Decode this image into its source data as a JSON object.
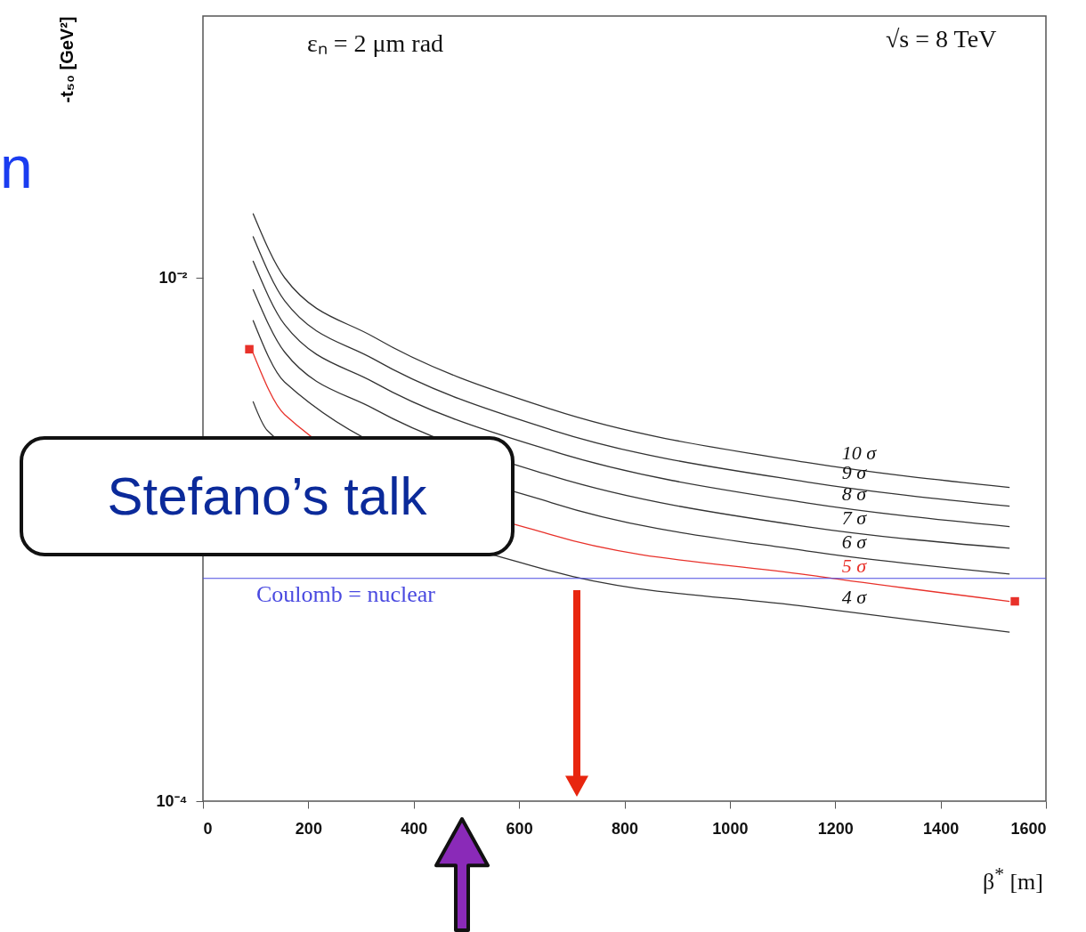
{
  "chart_data": {
    "type": "line",
    "xlabel": "β$^{*}$ [m]",
    "ylabel": "-t₅₀ [GeV²]",
    "log": "y",
    "grid": false,
    "xlim": [
      0,
      1600
    ],
    "xticks": [
      0,
      200,
      400,
      600,
      800,
      1000,
      1200,
      1400,
      1600
    ],
    "ylim": [
      0.0001,
      0.1
    ],
    "yticks": [
      {
        "value": 0.0001,
        "label": "10⁻⁴"
      },
      {
        "value": 0.001,
        "label": null
      },
      {
        "value": 0.01,
        "label": "10⁻²"
      }
    ],
    "x": [
      95,
      155,
      324,
      662,
      1145,
      1531
    ],
    "series": [
      {
        "name": "10 σ",
        "color": "#333333",
        "values": [
          0.0176,
          0.01,
          0.00594,
          0.00314,
          0.00197,
          0.00158
        ]
      },
      {
        "name": "9 σ",
        "color": "#333333",
        "values": [
          0.0144,
          0.00817,
          0.00489,
          0.00262,
          0.00166,
          0.00134
        ]
      },
      {
        "name": "8 σ",
        "color": "#333333",
        "values": [
          0.0116,
          0.00662,
          0.00399,
          0.00218,
          0.00138,
          0.00112
        ]
      },
      {
        "name": "7 σ",
        "color": "#333333",
        "values": [
          0.00904,
          0.0052,
          0.00316,
          0.00175,
          0.00112,
          0.000925
        ]
      },
      {
        "name": "6 σ",
        "color": "#333333",
        "values": [
          0.00688,
          0.00399,
          null,
          0.00138,
          0.000904,
          0.000738
        ]
      },
      {
        "name": "5 σ",
        "color": "#e8312a",
        "x": [
          95,
          155,
          662,
          1145,
          1531
        ],
        "values": [
          0.00516,
          0.003,
          0.00104,
          0.000733,
          0.00058
        ]
      },
      {
        "name": "4 σ",
        "color": "#333333",
        "x": [
          95,
          122,
          662,
          1145,
          1531
        ],
        "values": [
          0.00337,
          0.00261,
          0.000756,
          0.000554,
          0.000442
        ]
      },
      {
        "type": "scatter",
        "marker": "square",
        "color": "#e8312a",
        "x": [
          88,
          1541
        ],
        "values": [
          0.00533,
          0.00058
        ]
      }
    ],
    "ref_lines": [
      {
        "axis": "y",
        "value": 0.00071,
        "label": "Coulomb = nuclear",
        "color": "#4a4ae0"
      }
    ],
    "annotations": [
      "εₙ = 2 μm rad",
      "√s = 8 TeV",
      "Stefano’s talk",
      "n"
    ]
  }
}
